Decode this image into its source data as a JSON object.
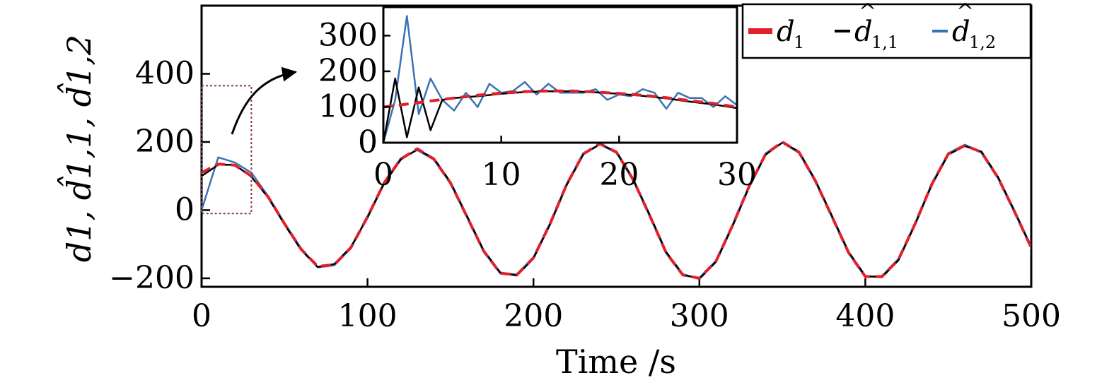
{
  "chart_data": [
    {
      "type": "line",
      "xlabel": "Time /s",
      "ylabel": "d1, d̂1,1, d̂1,2",
      "xlim": [
        0,
        500
      ],
      "ylim": [
        -225,
        600
      ],
      "x_ticks": [
        0,
        100,
        200,
        300,
        400,
        500
      ],
      "y_ticks": [
        -200,
        0,
        200,
        400
      ],
      "x_tick_labels": [
        "0",
        "100",
        "200",
        "300",
        "400",
        "500"
      ],
      "y_tick_labels": [
        "−200",
        "0",
        "200",
        "400"
      ],
      "legend": {
        "placement": "top-right",
        "entries": [
          {
            "base": "d",
            "sub": "1",
            "hat": false,
            "color": "#e0202a",
            "style": "dashed"
          },
          {
            "base": "d",
            "sub": "1,1",
            "hat": true,
            "color": "#000000",
            "style": "solid"
          },
          {
            "base": "d",
            "sub": "1,2",
            "hat": true,
            "color": "#3a73b4",
            "style": "solid"
          }
        ]
      },
      "series": [
        {
          "key": "d1",
          "color": "#e0202a",
          "x": [
            0,
            10,
            20,
            30,
            40,
            50,
            60,
            70,
            80,
            90,
            100,
            110,
            120,
            130,
            140,
            150,
            160,
            170,
            180,
            190,
            200,
            210,
            220,
            230,
            240,
            250,
            260,
            270,
            280,
            290,
            300,
            310,
            320,
            330,
            340,
            350,
            360,
            370,
            380,
            390,
            400,
            410,
            420,
            430,
            440,
            450,
            460,
            470,
            480,
            490,
            500
          ],
          "y": [
            110,
            135,
            132,
            100,
            40,
            -40,
            -115,
            -165,
            -160,
            -110,
            -20,
            80,
            150,
            180,
            150,
            80,
            -20,
            -120,
            -185,
            -190,
            -140,
            -40,
            75,
            165,
            195,
            170,
            90,
            -15,
            -125,
            -190,
            -200,
            -150,
            -45,
            70,
            165,
            200,
            170,
            85,
            -20,
            -125,
            -195,
            -195,
            -145,
            -40,
            75,
            165,
            190,
            170,
            95,
            -5,
            -110
          ]
        },
        {
          "key": "d11",
          "color": "#000000",
          "x": [
            0,
            10,
            20,
            30,
            40,
            50,
            60,
            70,
            80,
            90,
            100,
            110,
            120,
            130,
            140,
            150,
            160,
            170,
            180,
            190,
            200,
            210,
            220,
            230,
            240,
            250,
            260,
            270,
            280,
            290,
            300,
            310,
            320,
            330,
            340,
            350,
            360,
            370,
            380,
            390,
            400,
            410,
            420,
            430,
            440,
            450,
            460,
            470,
            480,
            490,
            500
          ],
          "y": [
            100,
            133,
            133,
            98,
            38,
            -42,
            -117,
            -167,
            -158,
            -108,
            -22,
            78,
            148,
            178,
            152,
            82,
            -18,
            -118,
            -183,
            -192,
            -142,
            -42,
            73,
            163,
            193,
            172,
            92,
            -13,
            -123,
            -188,
            -202,
            -152,
            -47,
            68,
            163,
            198,
            172,
            87,
            -18,
            -123,
            -193,
            -197,
            -147,
            -42,
            73,
            163,
            188,
            172,
            97,
            -3,
            -108
          ]
        },
        {
          "key": "d12",
          "color": "#3a73b4",
          "x": [
            0,
            10,
            20,
            30,
            40,
            50,
            60,
            70,
            80,
            90,
            100,
            110,
            120,
            130,
            140,
            150,
            160,
            170,
            180,
            190,
            200,
            210,
            220,
            230,
            240,
            250,
            260,
            270,
            280,
            290,
            300,
            310,
            320,
            330,
            340,
            350,
            360,
            370,
            380,
            390,
            400,
            410,
            420,
            430,
            440,
            450,
            460,
            470,
            480,
            490,
            500
          ],
          "y": [
            0,
            155,
            140,
            110,
            42,
            -38,
            -112,
            -168,
            -162,
            -112,
            -18,
            82,
            152,
            176,
            148,
            78,
            -22,
            -122,
            -186,
            -188,
            -138,
            -38,
            77,
            167,
            193,
            168,
            88,
            -17,
            -127,
            -192,
            -198,
            -148,
            -43,
            72,
            167,
            198,
            168,
            83,
            -22,
            -127,
            -197,
            -193,
            -143,
            -38,
            77,
            167,
            192,
            168,
            93,
            -7,
            -112
          ]
        }
      ]
    },
    {
      "type": "line",
      "role": "inset",
      "xlim": [
        0,
        30
      ],
      "ylim": [
        0,
        380
      ],
      "x_ticks": [
        0,
        10,
        20,
        30
      ],
      "y_ticks": [
        0,
        100,
        200,
        300
      ],
      "x_tick_labels": [
        "0",
        "10",
        "20",
        "30"
      ],
      "y_tick_labels": [
        "0",
        "100",
        "200",
        "300"
      ],
      "series": [
        {
          "key": "d1",
          "color": "#e0202a",
          "x": [
            0,
            2,
            4,
            6,
            8,
            10,
            12,
            14,
            16,
            18,
            20,
            22,
            24,
            26,
            28,
            30
          ],
          "y": [
            100,
            108,
            117,
            125,
            133,
            139,
            143,
            145,
            145,
            142,
            138,
            133,
            126,
            118,
            110,
            100
          ]
        },
        {
          "key": "d11",
          "color": "#000000",
          "x": [
            0,
            1,
            2,
            3,
            4,
            5,
            6,
            8,
            10,
            12,
            14,
            16,
            18,
            20,
            22,
            24,
            26,
            28,
            30
          ],
          "y": [
            0,
            180,
            15,
            155,
            35,
            120,
            125,
            130,
            137,
            142,
            144,
            144,
            141,
            137,
            131,
            124,
            115,
            107,
            97
          ]
        },
        {
          "key": "d12",
          "color": "#3a73b4",
          "x": [
            0,
            1,
            2,
            3,
            4,
            5,
            6,
            7,
            8,
            9,
            10,
            11,
            12,
            13,
            14,
            15,
            16,
            17,
            18,
            19,
            20,
            21,
            22,
            23,
            24,
            25,
            26,
            27,
            28,
            29,
            30
          ],
          "y": [
            0,
            120,
            355,
            80,
            180,
            120,
            90,
            140,
            100,
            165,
            140,
            145,
            170,
            135,
            165,
            140,
            140,
            140,
            150,
            120,
            135,
            130,
            150,
            140,
            95,
            140,
            125,
            125,
            100,
            130,
            105
          ]
        }
      ]
    }
  ]
}
